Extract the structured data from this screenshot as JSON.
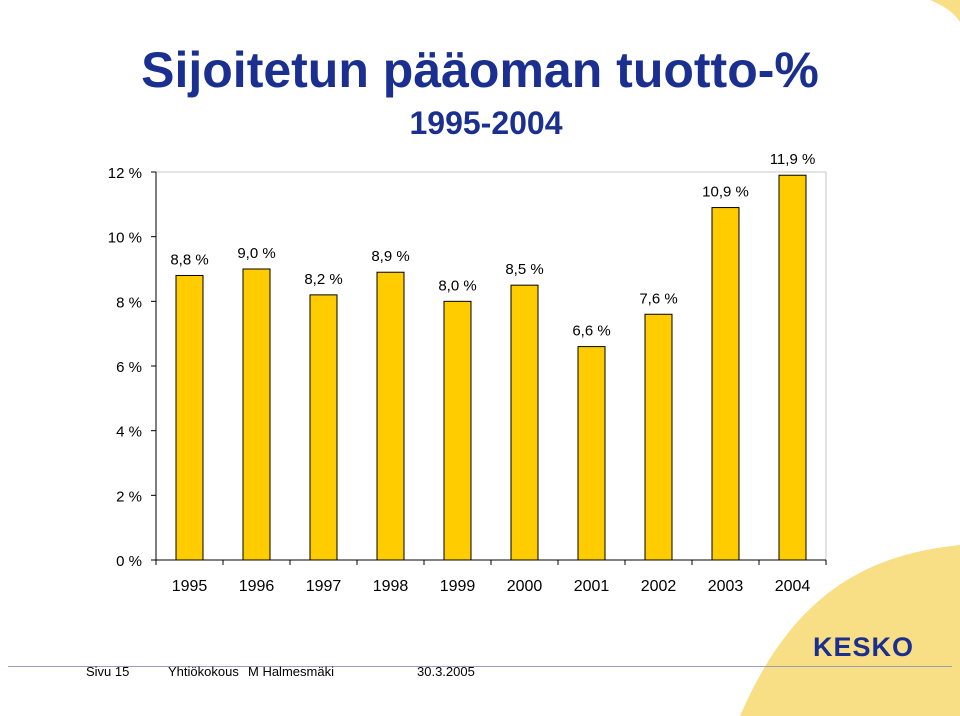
{
  "header": {
    "title": "Sijoitetun pääoman tuotto-%",
    "subtitle": "1995-2004"
  },
  "chart_data": {
    "type": "bar",
    "categories": [
      "1995",
      "1996",
      "1997",
      "1998",
      "1999",
      "2000",
      "2001",
      "2002",
      "2003",
      "2004"
    ],
    "values": [
      8.8,
      9.0,
      8.2,
      8.9,
      8.0,
      8.5,
      6.6,
      7.6,
      10.9,
      11.9
    ],
    "value_labels": [
      "8,8 %",
      "9,0 %",
      "8,2 %",
      "8,9 %",
      "8,0 %",
      "8,5 %",
      "6,6 %",
      "7,6 %",
      "10,9 %",
      "11,9 %"
    ],
    "y_ticks": [
      0,
      2,
      4,
      6,
      8,
      10,
      12
    ],
    "y_tick_labels": [
      "0 %",
      "2 %",
      "4 %",
      "6 %",
      "8 %",
      "10 %",
      "12 %"
    ],
    "ylim": [
      0,
      12
    ],
    "title": "Sijoitetun pääoman tuotto-%",
    "subtitle": "1995-2004",
    "bar_color": "#ffcc00",
    "grid": false,
    "legend": false
  },
  "footer": {
    "page": "Sivu 15",
    "event": "Yhtiökokous",
    "author": "M Halmesmäki",
    "date": "30.3.2005"
  },
  "brand": {
    "logo_text": "KESKO",
    "color": "#1a2f8f",
    "accent": "#f2d16b"
  }
}
